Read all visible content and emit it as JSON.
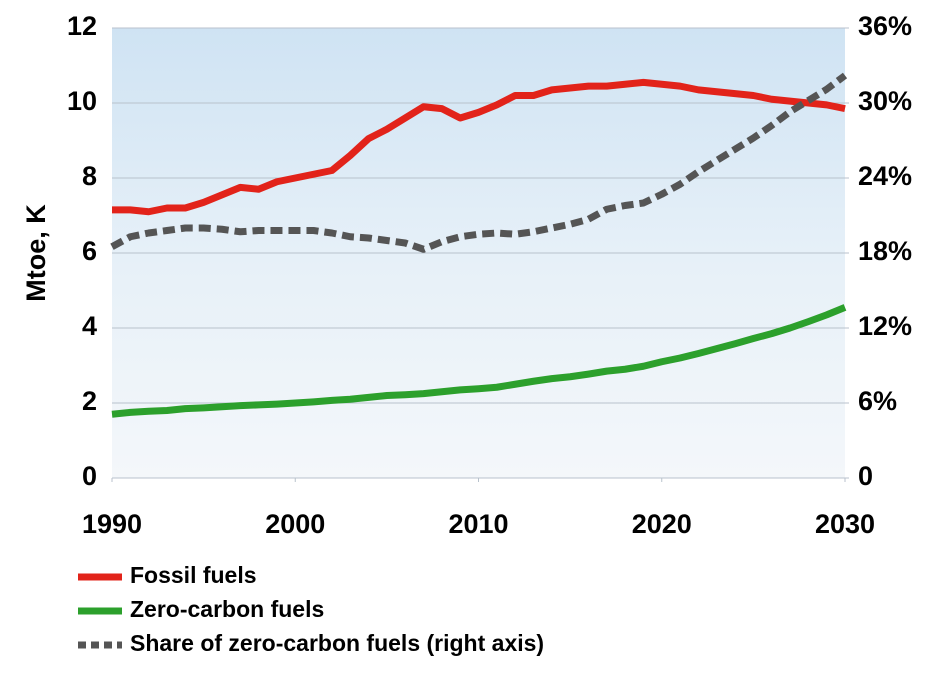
{
  "chart_data": {
    "type": "line",
    "y_label": "Mtoe, K",
    "x": [
      1990,
      1991,
      1992,
      1993,
      1994,
      1995,
      1996,
      1997,
      1998,
      1999,
      2000,
      2001,
      2002,
      2003,
      2004,
      2005,
      2006,
      2007,
      2008,
      2009,
      2010,
      2011,
      2012,
      2013,
      2014,
      2015,
      2016,
      2017,
      2018,
      2019,
      2020,
      2021,
      2022,
      2023,
      2024,
      2025,
      2026,
      2027,
      2028,
      2029,
      2030
    ],
    "xlim": [
      1990,
      2030
    ],
    "xticks": [
      1990,
      2000,
      2010,
      2020,
      2030
    ],
    "ylim": [
      0,
      12
    ],
    "yticks": [
      0,
      2,
      4,
      6,
      8,
      10,
      12
    ],
    "y2lim": [
      0,
      36
    ],
    "y2ticks": [
      0,
      {
        "value": 6,
        "label": "6%"
      },
      {
        "value": 12,
        "label": "12%"
      },
      {
        "value": 18,
        "label": "18%"
      },
      {
        "value": 24,
        "label": "24%"
      },
      {
        "value": 30,
        "label": "30%"
      },
      {
        "value": 36,
        "label": "36%"
      }
    ],
    "grid": true,
    "series": [
      {
        "name": "Fossil fuels",
        "color": "#e2231a",
        "dashed": false,
        "values": [
          7.15,
          7.15,
          7.1,
          7.2,
          7.2,
          7.35,
          7.55,
          7.75,
          7.7,
          7.9,
          8.0,
          8.1,
          8.2,
          8.6,
          9.05,
          9.3,
          9.6,
          9.9,
          9.85,
          9.6,
          9.75,
          9.95,
          10.2,
          10.2,
          10.35,
          10.4,
          10.45,
          10.45,
          10.5,
          10.55,
          10.5,
          10.45,
          10.35,
          10.3,
          10.25,
          10.2,
          10.1,
          10.05,
          10.0,
          9.95,
          9.85
        ]
      },
      {
        "name": "Zero-carbon fuels",
        "color": "#2ca02c",
        "dashed": false,
        "values": [
          1.7,
          1.75,
          1.78,
          1.8,
          1.85,
          1.87,
          1.9,
          1.93,
          1.95,
          1.97,
          2.0,
          2.03,
          2.07,
          2.1,
          2.15,
          2.2,
          2.22,
          2.25,
          2.3,
          2.35,
          2.38,
          2.42,
          2.5,
          2.58,
          2.65,
          2.7,
          2.77,
          2.85,
          2.9,
          2.98,
          3.1,
          3.2,
          3.32,
          3.45,
          3.58,
          3.72,
          3.85,
          4.0,
          4.17,
          4.35,
          4.55
        ]
      },
      {
        "name": "Share of zero-carbon fuels (right axis)",
        "color": "#555555",
        "dashed": true,
        "axis": "y2",
        "values": [
          18.5,
          19.3,
          19.6,
          19.8,
          20.0,
          20.0,
          19.9,
          19.7,
          19.8,
          19.8,
          19.8,
          19.8,
          19.6,
          19.3,
          19.2,
          19.0,
          18.8,
          18.3,
          18.9,
          19.3,
          19.5,
          19.6,
          19.5,
          19.7,
          20.0,
          20.3,
          20.7,
          21.5,
          21.8,
          22.0,
          22.7,
          23.5,
          24.5,
          25.4,
          26.3,
          27.2,
          28.2,
          29.3,
          30.2,
          31.1,
          32.2
        ]
      }
    ]
  }
}
